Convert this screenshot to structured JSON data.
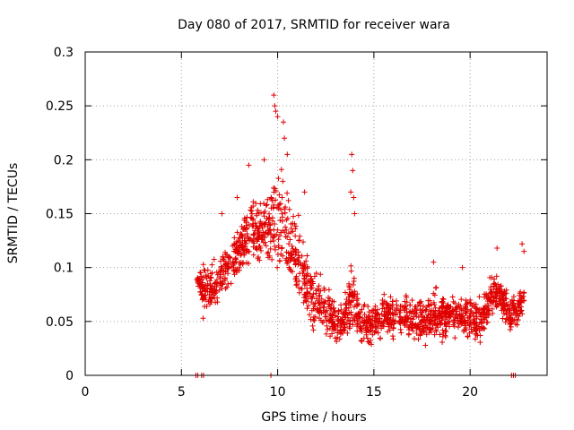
{
  "chart_data": {
    "type": "scatter",
    "title": "Day 080 of 2017, SRMTID for receiver wara",
    "xlabel": "GPS time / hours",
    "ylabel": "SRMTID / TECUs",
    "xlim": [
      0,
      24
    ],
    "ylim": [
      0,
      0.3
    ],
    "xticks": [
      0,
      5,
      10,
      15,
      20
    ],
    "xtick_labels": [
      "0",
      "5",
      "10",
      "15",
      "20"
    ],
    "yticks": [
      0,
      0.05,
      0.1,
      0.15,
      0.2,
      0.25,
      0.3
    ],
    "ytick_labels": [
      "0",
      "0.05",
      "0.1",
      "0.15",
      "0.2",
      "0.25",
      "0.3"
    ],
    "grid": true,
    "marker": "+",
    "color": "#e00000",
    "envelope": {
      "description": "approximate envelope of the dense point cloud (hours, TECU)",
      "x": [
        5.8,
        6.2,
        6.6,
        7.0,
        7.4,
        7.8,
        8.2,
        8.6,
        9.0,
        9.4,
        9.8,
        10.2,
        10.6,
        11.0,
        11.4,
        11.8,
        12.2,
        12.6,
        13.0,
        13.4,
        13.8,
        14.2,
        14.6,
        15.0,
        15.5,
        16.0,
        16.5,
        17.0,
        17.5,
        18.0,
        18.5,
        19.0,
        19.5,
        20.0,
        20.5,
        21.0,
        21.3,
        21.6,
        22.0,
        22.4,
        22.8
      ],
      "low": [
        0.085,
        0.04,
        0.05,
        0.06,
        0.07,
        0.08,
        0.085,
        0.1,
        0.1,
        0.09,
        0.09,
        0.08,
        0.07,
        0.06,
        0.05,
        0.04,
        0.035,
        0.03,
        0.025,
        0.025,
        0.035,
        0.025,
        0.02,
        0.025,
        0.03,
        0.03,
        0.03,
        0.03,
        0.025,
        0.025,
        0.025,
        0.03,
        0.03,
        0.03,
        0.025,
        0.045,
        0.05,
        0.05,
        0.035,
        0.04,
        0.05
      ],
      "high": [
        0.095,
        0.115,
        0.11,
        0.12,
        0.135,
        0.14,
        0.155,
        0.17,
        0.165,
        0.175,
        0.205,
        0.205,
        0.19,
        0.16,
        0.13,
        0.11,
        0.1,
        0.09,
        0.075,
        0.07,
        0.12,
        0.08,
        0.07,
        0.075,
        0.08,
        0.08,
        0.08,
        0.075,
        0.08,
        0.085,
        0.085,
        0.085,
        0.08,
        0.08,
        0.075,
        0.095,
        0.105,
        0.095,
        0.08,
        0.08,
        0.09
      ]
    },
    "spikes": [
      {
        "x": 9.8,
        "y": 0.26
      },
      {
        "x": 9.85,
        "y": 0.25
      },
      {
        "x": 9.9,
        "y": 0.245
      },
      {
        "x": 10.0,
        "y": 0.24
      },
      {
        "x": 10.3,
        "y": 0.235
      },
      {
        "x": 10.35,
        "y": 0.22
      },
      {
        "x": 10.5,
        "y": 0.205
      },
      {
        "x": 8.5,
        "y": 0.195
      },
      {
        "x": 9.3,
        "y": 0.2
      },
      {
        "x": 7.9,
        "y": 0.165
      },
      {
        "x": 13.85,
        "y": 0.205
      },
      {
        "x": 13.9,
        "y": 0.19
      },
      {
        "x": 13.8,
        "y": 0.17
      },
      {
        "x": 13.95,
        "y": 0.165
      },
      {
        "x": 14.0,
        "y": 0.15
      },
      {
        "x": 11.4,
        "y": 0.17
      },
      {
        "x": 7.1,
        "y": 0.15
      },
      {
        "x": 21.4,
        "y": 0.118
      },
      {
        "x": 22.7,
        "y": 0.122
      },
      {
        "x": 22.8,
        "y": 0.115
      },
      {
        "x": 18.1,
        "y": 0.105
      },
      {
        "x": 19.6,
        "y": 0.1
      }
    ],
    "zero_points": [
      {
        "x": 5.75,
        "y": 0
      },
      {
        "x": 5.85,
        "y": 0
      },
      {
        "x": 6.05,
        "y": 0
      },
      {
        "x": 6.15,
        "y": 0
      },
      {
        "x": 9.65,
        "y": 0
      },
      {
        "x": 22.15,
        "y": 0
      },
      {
        "x": 22.25,
        "y": 0
      },
      {
        "x": 22.35,
        "y": 0
      }
    ]
  }
}
